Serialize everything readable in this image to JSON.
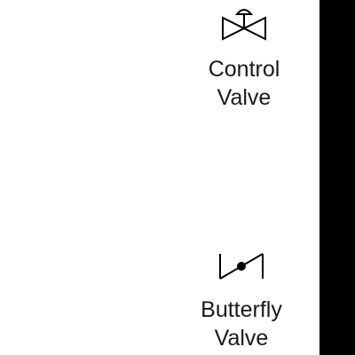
{
  "palette": {
    "items": [
      {
        "label_line1": "Control",
        "label_line2": "Valve",
        "icon": "control-valve-icon"
      },
      {
        "label_line1": "Butterfly",
        "label_line2": "Valve",
        "icon": "butterfly-valve-icon"
      }
    ]
  },
  "colors": {
    "background": "#ffffff",
    "stroke": "#000000",
    "text": "#1a1a1a",
    "side_panel": "#000000"
  }
}
